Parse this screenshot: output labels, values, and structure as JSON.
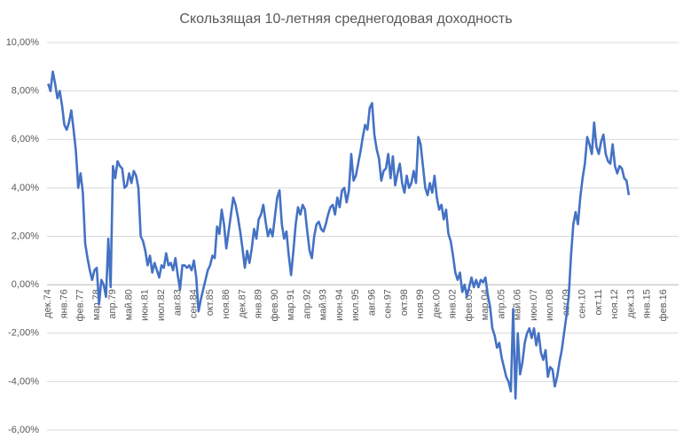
{
  "chart_data": {
    "type": "line",
    "title": "Скользящая 10-летняя среднегодовая доходность",
    "categories": [
      "дек.74",
      null,
      null,
      null,
      null,
      null,
      null,
      "янв.76",
      null,
      null,
      null,
      null,
      null,
      null,
      "фев.77",
      null,
      null,
      null,
      null,
      null,
      null,
      "мар.78",
      null,
      null,
      null,
      null,
      null,
      null,
      "апр.79",
      null,
      null,
      null,
      null,
      null,
      null,
      "май.80",
      null,
      null,
      null,
      null,
      null,
      null,
      "июн.81",
      null,
      null,
      null,
      null,
      null,
      null,
      "июл.82",
      null,
      null,
      null,
      null,
      null,
      null,
      "авг.83",
      null,
      null,
      null,
      null,
      null,
      null,
      "сен.84",
      null,
      null,
      null,
      null,
      null,
      null,
      "окт.85",
      null,
      null,
      null,
      null,
      null,
      null,
      "ноя.86",
      null,
      null,
      null,
      null,
      null,
      null,
      "дек.87",
      null,
      null,
      null,
      null,
      null,
      null,
      "янв.89",
      null,
      null,
      null,
      null,
      null,
      null,
      "фев.90",
      null,
      null,
      null,
      null,
      null,
      null,
      "мар.91",
      null,
      null,
      null,
      null,
      null,
      null,
      "апр.92",
      null,
      null,
      null,
      null,
      null,
      null,
      "май.93",
      null,
      null,
      null,
      null,
      null,
      null,
      "июн.94",
      null,
      null,
      null,
      null,
      null,
      null,
      "июл.95",
      null,
      null,
      null,
      null,
      null,
      null,
      "авг.96",
      null,
      null,
      null,
      null,
      null,
      null,
      "сен.97",
      null,
      null,
      null,
      null,
      null,
      null,
      "окт.98",
      null,
      null,
      null,
      null,
      null,
      null,
      "ноя.99",
      null,
      null,
      null,
      null,
      null,
      null,
      "дек.00",
      null,
      null,
      null,
      null,
      null,
      null,
      "янв.02",
      null,
      null,
      null,
      null,
      null,
      null,
      "фев.03",
      null,
      null,
      null,
      null,
      null,
      null,
      "мар.04",
      null,
      null,
      null,
      null,
      null,
      null,
      "апр.05",
      null,
      null,
      null,
      null,
      null,
      null,
      "май.06",
      null,
      null,
      null,
      null,
      null,
      null,
      "июн.07",
      null,
      null,
      null,
      null,
      null,
      null,
      "июл.08",
      null,
      null,
      null,
      null,
      null,
      null,
      "авг.09",
      null,
      null,
      null,
      null,
      null,
      null,
      "сен.10",
      null,
      null,
      null,
      null,
      null,
      null,
      "окт.11",
      null,
      null,
      null,
      null,
      null,
      null,
      "ноя.12",
      null,
      null,
      null,
      null,
      null,
      null,
      "дек.13",
      null,
      null,
      null,
      null,
      null,
      null,
      "янв.15",
      null,
      null,
      null,
      null,
      null,
      null,
      "фев.16",
      null,
      null,
      null,
      null,
      null,
      null
    ],
    "values": [
      8.3,
      8.0,
      8.8,
      8.3,
      7.7,
      8.0,
      7.4,
      6.6,
      6.4,
      6.7,
      7.2,
      6.4,
      5.5,
      4.0,
      4.6,
      3.8,
      1.7,
      1.1,
      0.6,
      0.2,
      0.6,
      0.7,
      -0.8,
      0.2,
      0.0,
      -0.5,
      1.9,
      -0.1,
      4.9,
      4.4,
      5.1,
      4.9,
      4.8,
      4.0,
      4.1,
      4.6,
      4.2,
      4.7,
      4.5,
      4.0,
      2.0,
      1.8,
      1.4,
      0.8,
      1.2,
      0.5,
      0.9,
      0.6,
      0.3,
      0.8,
      0.7,
      1.3,
      0.8,
      0.9,
      0.6,
      1.1,
      0.4,
      -0.2,
      0.8,
      0.8,
      0.7,
      0.8,
      0.6,
      1.0,
      0.3,
      -1.1,
      -0.6,
      -0.2,
      0.2,
      0.6,
      0.8,
      1.2,
      1.1,
      2.4,
      2.1,
      3.1,
      2.5,
      1.5,
      2.2,
      2.9,
      3.6,
      3.3,
      2.8,
      2.2,
      1.5,
      0.7,
      1.4,
      0.9,
      1.5,
      2.3,
      1.9,
      2.7,
      2.9,
      3.3,
      2.6,
      2.0,
      2.3,
      2.0,
      2.8,
      3.6,
      3.9,
      2.5,
      1.9,
      2.2,
      1.2,
      0.4,
      1.4,
      2.5,
      3.2,
      2.9,
      3.3,
      3.1,
      2.2,
      1.4,
      1.1,
      2.0,
      2.5,
      2.6,
      2.3,
      2.2,
      2.5,
      2.9,
      3.2,
      3.3,
      2.9,
      3.6,
      3.2,
      3.9,
      4.0,
      3.4,
      3.9,
      5.4,
      4.3,
      4.5,
      5.0,
      5.5,
      6.1,
      6.6,
      6.4,
      7.3,
      7.5,
      6.2,
      5.6,
      5.2,
      4.3,
      4.7,
      4.8,
      5.4,
      4.4,
      5.3,
      4.1,
      4.6,
      5.0,
      4.2,
      3.8,
      4.5,
      4.0,
      4.2,
      4.7,
      4.2,
      6.1,
      5.8,
      4.9,
      4.0,
      3.7,
      4.2,
      3.8,
      4.5,
      3.6,
      3.1,
      3.3,
      2.7,
      3.1,
      2.1,
      1.8,
      1.2,
      0.5,
      0.2,
      0.5,
      -0.3,
      0.0,
      -0.5,
      -0.1,
      0.3,
      -0.1,
      0.2,
      -0.1,
      0.2,
      0.1,
      0.3,
      -0.4,
      -0.9,
      -1.8,
      -2.1,
      -2.6,
      -2.4,
      -3.0,
      -3.4,
      -3.8,
      -4.0,
      -4.4,
      -1.0,
      -4.7,
      -2.0,
      -3.7,
      -3.2,
      -2.4,
      -2.0,
      -1.8,
      -2.2,
      -1.8,
      -2.5,
      -2.0,
      -2.8,
      -3.1,
      -2.7,
      -3.8,
      -3.4,
      -3.5,
      -4.2,
      -3.8,
      -3.2,
      -2.7,
      -2.0,
      -1.3,
      -0.5,
      1.2,
      2.5,
      3.0,
      2.5,
      3.6,
      4.4,
      5.0,
      6.1,
      5.8,
      5.4,
      6.7,
      5.7,
      5.4,
      5.9,
      6.2,
      5.4,
      5.1,
      5.0,
      5.8,
      4.9,
      4.6,
      4.9,
      4.8,
      4.4,
      4.3,
      3.7,
      null,
      null,
      null,
      null,
      null,
      null,
      null,
      null,
      null,
      null,
      null,
      null,
      null,
      null,
      null,
      null,
      null,
      null,
      null,
      null,
      null
    ],
    "color": "#4472c4",
    "ylim": [
      -6,
      10
    ],
    "yticks": [
      {
        "value": -6,
        "label": "-6,00%"
      },
      {
        "value": -4,
        "label": "-4,00%"
      },
      {
        "value": -2,
        "label": "-2,00%"
      },
      {
        "value": 0,
        "label": "0,00%"
      },
      {
        "value": 2,
        "label": "2,00%"
      },
      {
        "value": 4,
        "label": "4,00%"
      },
      {
        "value": 6,
        "label": "6,00%"
      },
      {
        "value": 8,
        "label": "8,00%"
      },
      {
        "value": 10,
        "label": "10,00%"
      }
    ],
    "grid": true
  }
}
